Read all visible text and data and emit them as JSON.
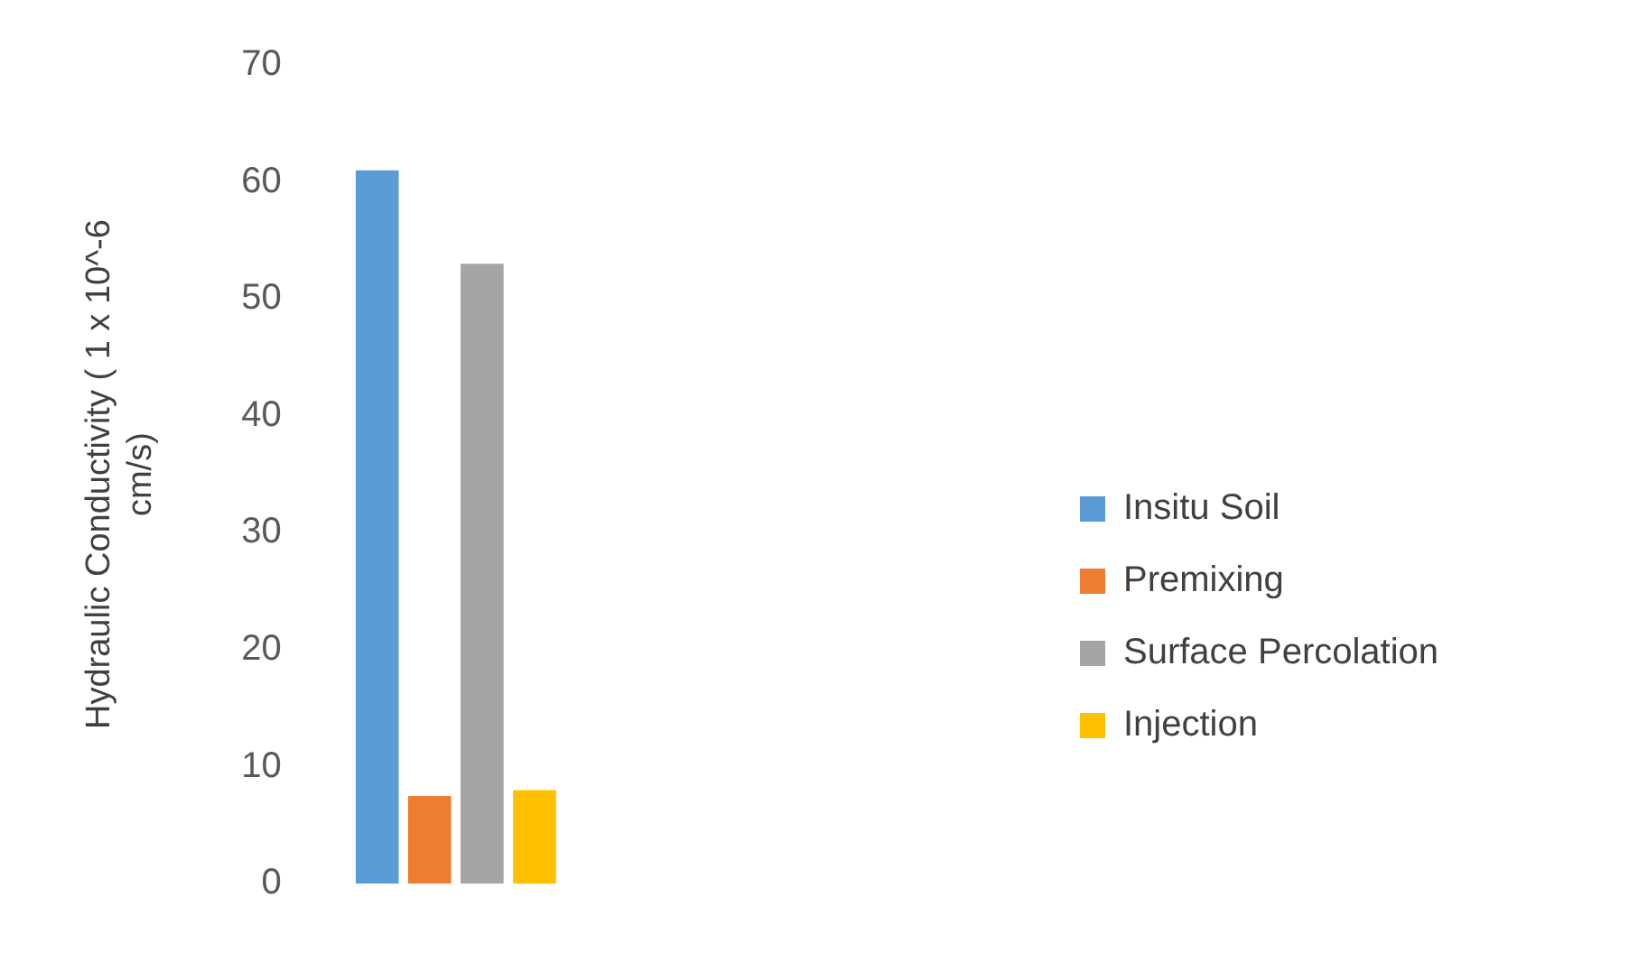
{
  "chart_data": {
    "type": "bar",
    "ylabel": "Hydraulic Conductivity ( 1 x 10^-6 cm/s)",
    "categories": [
      null
    ],
    "series": [
      {
        "name": "Insitu Soil",
        "color": "#5b9bd5",
        "values": [
          61
        ]
      },
      {
        "name": "Premixing",
        "color": "#ed7d31",
        "values": [
          7.5
        ]
      },
      {
        "name": "Surface Percolation",
        "color": "#a5a5a5",
        "values": [
          53
        ]
      },
      {
        "name": "Injection",
        "color": "#ffc000",
        "values": [
          8
        ]
      }
    ],
    "ylim": [
      0,
      70
    ],
    "yticks": [
      0,
      10,
      20,
      30,
      40,
      50,
      60,
      70
    ],
    "grid": false,
    "legend": "right"
  }
}
